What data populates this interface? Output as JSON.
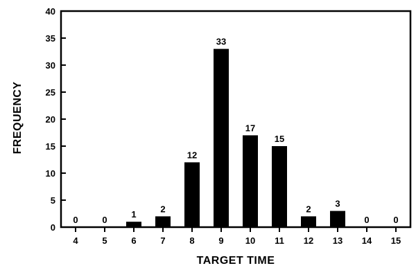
{
  "chart_data": {
    "type": "bar",
    "categories": [
      "4",
      "5",
      "6",
      "7",
      "8",
      "9",
      "10",
      "11",
      "12",
      "13",
      "14",
      "15"
    ],
    "values": [
      0,
      0,
      1,
      2,
      12,
      33,
      17,
      15,
      2,
      3,
      0,
      0
    ],
    "data_labels": [
      "0",
      "0",
      "1",
      "2",
      "12",
      "33",
      "17",
      "15",
      "2",
      "3",
      "0",
      "0"
    ],
    "xlabel": "TARGET TIME",
    "ylabel": "FREQUENCY",
    "ylim": [
      0,
      40
    ],
    "yticks": [
      "0",
      "5",
      "10",
      "15",
      "20",
      "25",
      "30",
      "35",
      "40"
    ],
    "grid": false,
    "colors": {
      "bar": "#000000",
      "axis": "#000000"
    }
  }
}
